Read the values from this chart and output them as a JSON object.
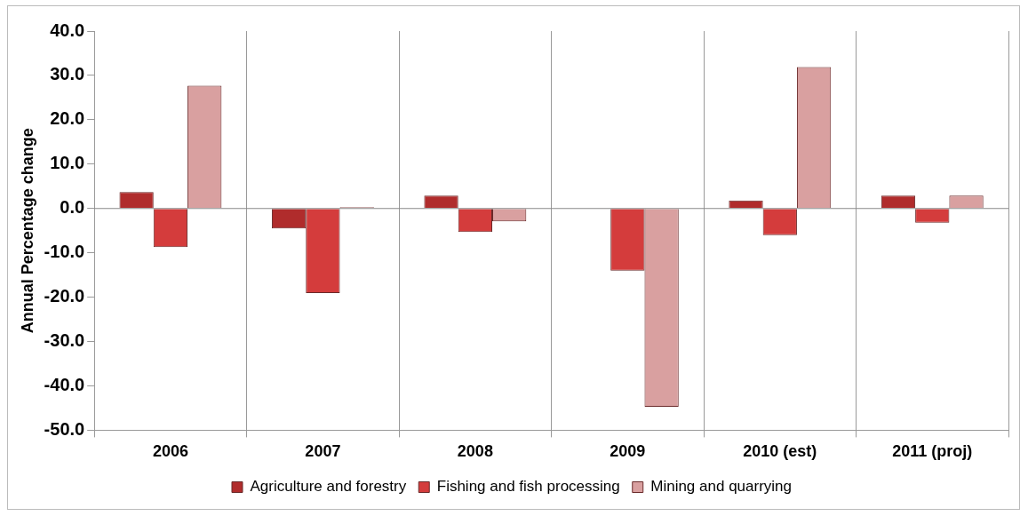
{
  "chart_data": {
    "type": "bar",
    "ylabel": "Annual Percentage change",
    "categories": [
      "2006",
      "2007",
      "2008",
      "2009",
      "2010 (est)",
      "2011 (proj)"
    ],
    "series": [
      {
        "name": "Agriculture and forestry",
        "color": "#b02c2c",
        "values": [
          3.7,
          -4.5,
          2.9,
          0.0,
          1.8,
          2.9
        ]
      },
      {
        "name": "Fishing and fish processing",
        "color": "#d43c3c",
        "values": [
          -8.7,
          -19.1,
          -5.3,
          -14.0,
          -6.0,
          -3.2
        ]
      },
      {
        "name": "Mining and quarrying",
        "color": "#d9a0a0",
        "values": [
          27.7,
          0.3,
          -2.9,
          -44.7,
          31.9,
          2.9
        ]
      }
    ],
    "ylim": [
      -50,
      40
    ],
    "yticks": [
      {
        "value": -50,
        "label": "-50.0"
      },
      {
        "value": -40,
        "label": "-40.0"
      },
      {
        "value": -30,
        "label": "-30.0"
      },
      {
        "value": -20,
        "label": "-20.0"
      },
      {
        "value": -10,
        "label": "-10.0"
      },
      {
        "value": 0,
        "label": "0.0"
      },
      {
        "value": 10,
        "label": "10.0"
      },
      {
        "value": 20,
        "label": "20.0"
      },
      {
        "value": 30,
        "label": "30.0"
      },
      {
        "value": 40,
        "label": "40.0"
      }
    ],
    "grid": "x",
    "legend": "bottom"
  }
}
